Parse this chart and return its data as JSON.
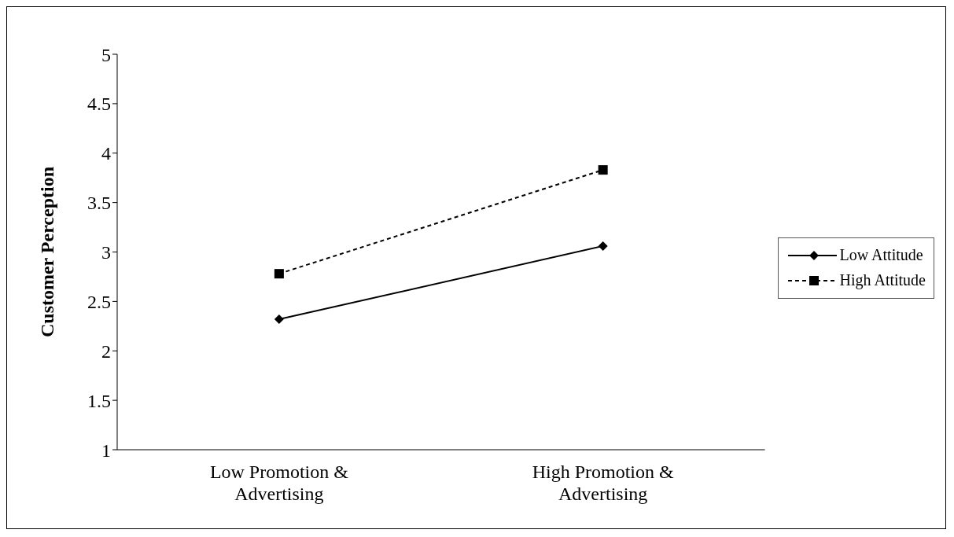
{
  "chart_data": {
    "type": "line",
    "ylabel": "Customer Perception",
    "categories": [
      "Low Promotion & Advertising",
      "High Promotion & Advertising"
    ],
    "series": [
      {
        "name": "Low Attitude",
        "color": "#000000",
        "values": [
          2.32,
          3.06
        ],
        "marker": "diamond",
        "line_style": "solid"
      },
      {
        "name": "High Attitude",
        "color": "#000000",
        "values": [
          2.78,
          3.83
        ],
        "marker": "square",
        "line_style": "dashed"
      }
    ],
    "ylim": [
      1,
      5
    ],
    "yticks": [
      1,
      1.5,
      2,
      2.5,
      3,
      3.5,
      4,
      4.5,
      5
    ],
    "grid": false,
    "legend": "right"
  }
}
